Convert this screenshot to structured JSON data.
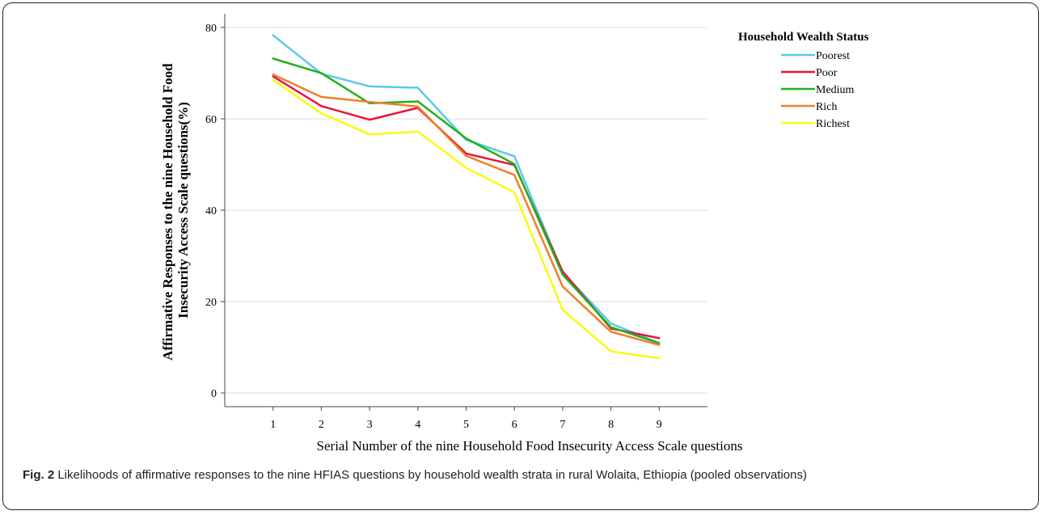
{
  "chart_data": {
    "type": "line",
    "title": "",
    "xlabel": "Serial Number of the nine Household Food Insecurity Access Scale questions",
    "ylabel_lines": [
      "Affirmative Responses to the nine Household Food",
      "Insecurity Access Scale questions(%)"
    ],
    "x": [
      1,
      2,
      3,
      4,
      5,
      6,
      7,
      8,
      9
    ],
    "xlim": [
      0,
      10
    ],
    "ylim": [
      -3,
      83
    ],
    "yticks": [
      0,
      20,
      40,
      60,
      80
    ],
    "grid": true,
    "legend": {
      "title": "Household Wealth Status",
      "placement": "top-right outside"
    },
    "series": [
      {
        "name": "Poorest",
        "color": "#5bc8ea",
        "values": [
          78.3,
          69.9,
          67.1,
          66.8,
          55.4,
          51.8,
          26.4,
          15.2,
          10.9
        ]
      },
      {
        "name": "Poor",
        "color": "#e8143c",
        "values": [
          69.3,
          62.8,
          59.8,
          62.4,
          52.4,
          49.9,
          26.6,
          14.1,
          12.0
        ]
      },
      {
        "name": "Medium",
        "color": "#22b01e",
        "values": [
          73.2,
          70.0,
          63.4,
          63.8,
          55.7,
          50.1,
          25.9,
          14.4,
          10.9
        ]
      },
      {
        "name": "Rich",
        "color": "#f07f25",
        "values": [
          69.7,
          64.8,
          63.7,
          62.7,
          51.9,
          47.7,
          23.3,
          13.4,
          10.5
        ]
      },
      {
        "name": "Richest",
        "color": "#fafa10",
        "values": [
          68.5,
          61.2,
          56.6,
          57.2,
          49.3,
          43.9,
          18.2,
          9.1,
          7.6
        ]
      }
    ]
  },
  "caption": {
    "label": "Fig. 2",
    "text": "Likelihoods of affirmative responses to the nine HFIAS questions by household wealth strata in rural Wolaita, Ethiopia (pooled observations)"
  }
}
